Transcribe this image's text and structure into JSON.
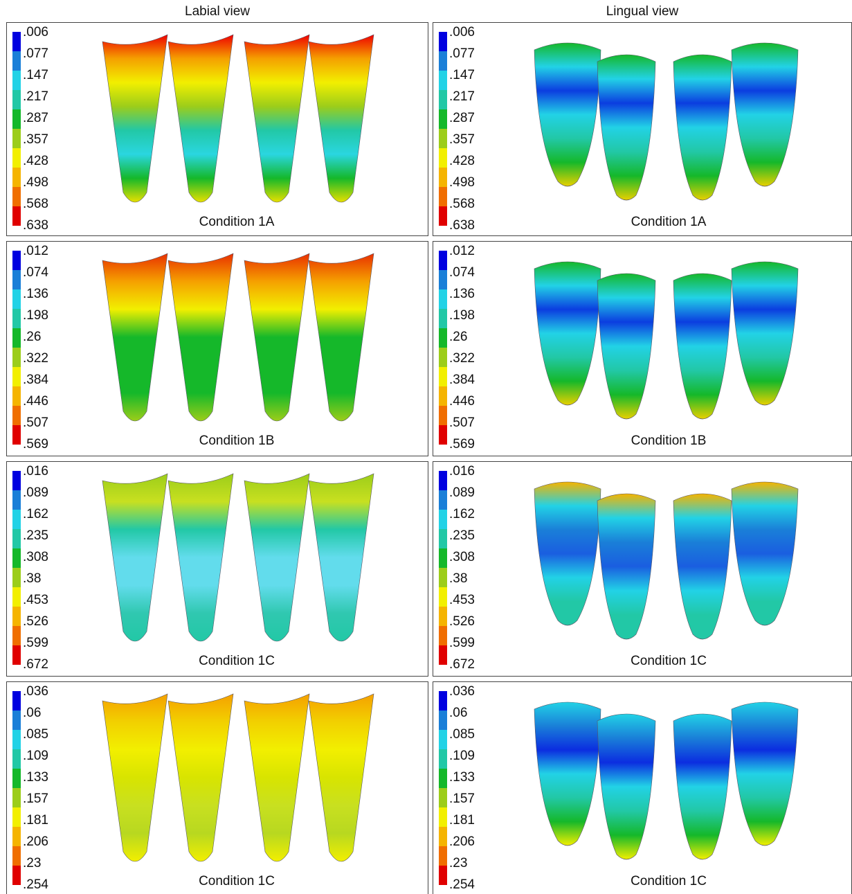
{
  "headers": [
    "Labial view",
    "Lingual view"
  ],
  "rows": [
    {
      "legend": [
        ".006",
        ".077",
        ".147",
        ".217",
        ".287",
        ".357",
        ".428",
        ".498",
        ".568",
        ".638"
      ],
      "captions": [
        "Condition 1A",
        "Condition 1A"
      ]
    },
    {
      "legend": [
        ".012",
        ".074",
        ".136",
        ".198",
        ".26",
        ".322",
        ".384",
        ".446",
        ".507",
        ".569"
      ],
      "captions": [
        "Condition 1B",
        "Condition 1B"
      ]
    },
    {
      "legend": [
        ".016",
        ".089",
        ".162",
        ".235",
        ".308",
        ".38",
        ".453",
        ".526",
        ".599",
        ".672"
      ],
      "captions": [
        "Condition 1C",
        "Condition 1C"
      ]
    },
    {
      "legend": [
        ".036",
        ".06",
        ".085",
        ".109",
        ".133",
        ".157",
        ".181",
        ".206",
        ".23",
        ".254"
      ],
      "captions": [
        "Condition 1C",
        "Condition 1C"
      ]
    }
  ]
}
